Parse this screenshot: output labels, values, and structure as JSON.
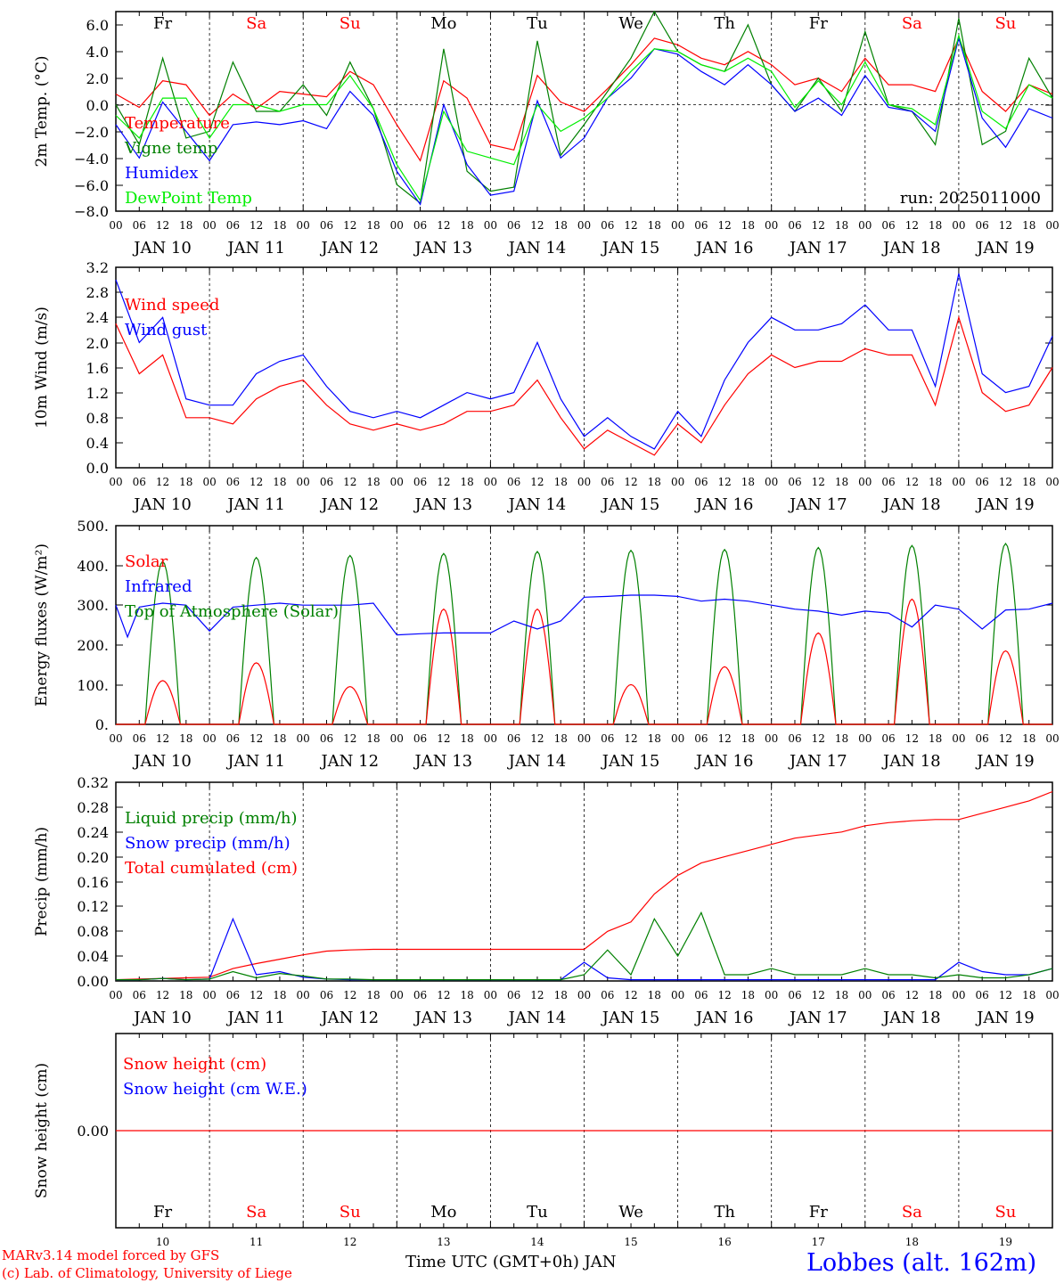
{
  "colors": {
    "red": "#ff0000",
    "blue": "#0000ff",
    "green": "#008000",
    "lightgreen": "#00ee00",
    "black": "#000000"
  },
  "days_header": {
    "labels": [
      "Fr",
      "Sa",
      "Su",
      "Mo",
      "Tu",
      "We",
      "Th",
      "Fr",
      "Sa",
      "Su"
    ],
    "label_colors": [
      "#000000",
      "#ff0000",
      "#ff0000",
      "#000000",
      "#000000",
      "#000000",
      "#000000",
      "#000000",
      "#ff0000",
      "#ff0000"
    ]
  },
  "hour_ticks": [
    "00",
    "06",
    "12",
    "18"
  ],
  "dates": [
    "JAN 10",
    "JAN 11",
    "JAN 12",
    "JAN 13",
    "JAN 14",
    "JAN 15",
    "JAN 16",
    "JAN 17",
    "JAN 18",
    "JAN 19"
  ],
  "bottom_day_numbers": [
    "10",
    "11",
    "12",
    "13",
    "14",
    "15",
    "16",
    "17",
    "18",
    "19"
  ],
  "footer": {
    "model_line1": "MARv3.14 model forced by GFS",
    "model_line2": "(c) Lab. of Climatology, University of Liege",
    "xlabel": "Time UTC (GMT+0h) JAN",
    "station": "Lobbes (alt. 162m)"
  },
  "chart_data": [
    {
      "type": "line",
      "ylabel": "2m Temp. (°C)",
      "annotation": "run: 2025011000",
      "ylim": [
        -8,
        7
      ],
      "yticks": [
        "6.0",
        "4.0",
        "2.0",
        "0.0",
        "−2.0",
        "−4.0",
        "−6.0",
        "−8.0"
      ],
      "zero_line": true,
      "x_hours": [
        0,
        6,
        12,
        18,
        24,
        30,
        36,
        42,
        48,
        54,
        60,
        66,
        72,
        78,
        84,
        90,
        96,
        102,
        108,
        114,
        120,
        126,
        132,
        138,
        144,
        150,
        156,
        162,
        168,
        174,
        180,
        186,
        192,
        198,
        204,
        210,
        216,
        222,
        228,
        234,
        240
      ],
      "series": [
        {
          "name": "Temperature",
          "color": "#ff0000",
          "values": [
            0.8,
            -0.2,
            1.8,
            1.5,
            -0.8,
            0.8,
            -0.3,
            1.0,
            0.8,
            0.6,
            2.5,
            1.5,
            -1.5,
            -4.2,
            1.8,
            0.5,
            -3.0,
            -3.4,
            2.2,
            0.2,
            -0.5,
            1.2,
            3.0,
            5.0,
            4.5,
            3.5,
            3.0,
            4.0,
            3.0,
            1.5,
            2.0,
            1.0,
            3.5,
            1.5,
            1.5,
            1.0,
            5.0,
            1.0,
            -0.5,
            1.5,
            0.8
          ]
        },
        {
          "name": "Vigne temp",
          "color": "#008000",
          "values": [
            0.0,
            -3.0,
            3.5,
            -2.5,
            -2.0,
            3.2,
            -0.5,
            -0.5,
            1.5,
            -0.8,
            3.2,
            -0.3,
            -6.0,
            -7.4,
            4.2,
            -5.0,
            -6.5,
            -6.2,
            4.8,
            -3.8,
            -1.5,
            1.0,
            3.5,
            7.0,
            4.0,
            3.0,
            2.5,
            6.0,
            1.5,
            -0.5,
            2.0,
            -0.5,
            5.5,
            0.0,
            -0.5,
            -3.0,
            6.5,
            -3.0,
            -2.0,
            3.5,
            0.5
          ]
        },
        {
          "name": "Humidex",
          "color": "#0000ff",
          "values": [
            -1.5,
            -4.0,
            0.2,
            -2.0,
            -4.2,
            -1.5,
            -1.3,
            -1.5,
            -1.2,
            -1.8,
            1.0,
            -0.8,
            -5.0,
            -7.5,
            0.0,
            -4.5,
            -6.8,
            -6.5,
            0.3,
            -4.0,
            -2.5,
            0.5,
            2.0,
            4.2,
            3.8,
            2.5,
            1.5,
            3.0,
            1.5,
            -0.5,
            0.5,
            -0.8,
            2.2,
            -0.2,
            -0.5,
            -2.0,
            5.0,
            -1.0,
            -3.2,
            -0.3,
            -1.0
          ]
        },
        {
          "name": "DewPoint Temp",
          "color": "#00ee00",
          "values": [
            -0.8,
            -2.5,
            0.5,
            0.5,
            -2.5,
            0.0,
            0.0,
            -0.5,
            0.0,
            0.0,
            2.2,
            -0.3,
            -4.5,
            -7.2,
            -0.5,
            -3.5,
            -4.0,
            -4.5,
            0.0,
            -2.0,
            -1.0,
            0.5,
            2.5,
            4.2,
            4.0,
            3.0,
            2.5,
            3.5,
            2.5,
            -0.2,
            1.8,
            0.0,
            3.2,
            0.0,
            -0.3,
            -1.5,
            5.2,
            -0.5,
            -1.8,
            1.5,
            0.5
          ]
        }
      ]
    },
    {
      "type": "line",
      "ylabel": "10m Wind (m/s)",
      "ylim": [
        0,
        3.2
      ],
      "yticks": [
        "3.2",
        "2.8",
        "2.4",
        "2.0",
        "1.6",
        "1.2",
        "0.8",
        "0.4",
        "0.0"
      ],
      "x_hours": [
        0,
        6,
        12,
        18,
        24,
        30,
        36,
        42,
        48,
        54,
        60,
        66,
        72,
        78,
        84,
        90,
        96,
        102,
        108,
        114,
        120,
        126,
        132,
        138,
        144,
        150,
        156,
        162,
        168,
        174,
        180,
        186,
        192,
        198,
        204,
        210,
        216,
        222,
        228,
        234,
        240
      ],
      "series": [
        {
          "name": "Wind speed",
          "color": "#ff0000",
          "values": [
            2.3,
            1.5,
            1.8,
            0.8,
            0.8,
            0.7,
            1.1,
            1.3,
            1.4,
            1.0,
            0.7,
            0.6,
            0.7,
            0.6,
            0.7,
            0.9,
            0.9,
            1.0,
            1.4,
            0.8,
            0.3,
            0.6,
            0.4,
            0.2,
            0.7,
            0.4,
            1.0,
            1.5,
            1.8,
            1.6,
            1.7,
            1.7,
            1.9,
            1.8,
            1.8,
            1.0,
            2.4,
            1.2,
            0.9,
            1.0,
            1.6
          ]
        },
        {
          "name": "Wind gust",
          "color": "#0000ff",
          "values": [
            3.0,
            2.0,
            2.4,
            1.1,
            1.0,
            1.0,
            1.5,
            1.7,
            1.8,
            1.3,
            0.9,
            0.8,
            0.9,
            0.8,
            1.0,
            1.2,
            1.1,
            1.2,
            2.0,
            1.1,
            0.5,
            0.8,
            0.5,
            0.3,
            0.9,
            0.5,
            1.4,
            2.0,
            2.4,
            2.2,
            2.2,
            2.3,
            2.6,
            2.2,
            2.2,
            1.3,
            3.1,
            1.5,
            1.2,
            1.3,
            2.1
          ]
        }
      ]
    },
    {
      "type": "line",
      "ylabel": "Energy fluxes (W/m²)",
      "ylim": [
        0,
        500
      ],
      "yticks": [
        "500.",
        "400.",
        "300.",
        "200.",
        "100.",
        "0."
      ],
      "series": [
        {
          "name": "Solar",
          "color": "#ff0000",
          "peaks": [
            110,
            155,
            95,
            290,
            290,
            100,
            145,
            230,
            315,
            185
          ]
        },
        {
          "name": "Infrared",
          "color": "#0000ff",
          "x_hours": [
            0,
            3,
            6,
            9,
            12,
            18,
            24,
            30,
            36,
            42,
            48,
            60,
            66,
            72,
            78,
            84,
            96,
            102,
            108,
            114,
            120,
            126,
            132,
            138,
            144,
            150,
            156,
            162,
            168,
            174,
            180,
            186,
            192,
            198,
            204,
            210,
            216,
            222,
            228,
            234,
            240
          ],
          "values": [
            300,
            220,
            295,
            300,
            305,
            300,
            235,
            295,
            300,
            305,
            300,
            300,
            305,
            225,
            228,
            230,
            230,
            260,
            240,
            260,
            320,
            322,
            325,
            325,
            322,
            310,
            315,
            310,
            300,
            290,
            285,
            275,
            285,
            280,
            245,
            300,
            290,
            240,
            288,
            290,
            305
          ]
        },
        {
          "name": "Top of Atmosphere (Solar)",
          "color": "#008000",
          "peaks": [
            410,
            420,
            425,
            430,
            435,
            438,
            440,
            445,
            450,
            455
          ]
        }
      ]
    },
    {
      "type": "line",
      "ylabel": "Precip (mm/h)",
      "ylim": [
        0,
        0.32
      ],
      "yticks": [
        "0.32",
        "0.28",
        "0.24",
        "0.20",
        "0.16",
        "0.12",
        "0.08",
        "0.04",
        "0.00"
      ],
      "x_hours": [
        0,
        6,
        12,
        18,
        24,
        30,
        36,
        42,
        48,
        54,
        60,
        66,
        72,
        78,
        84,
        90,
        96,
        102,
        108,
        114,
        120,
        126,
        132,
        138,
        144,
        150,
        156,
        162,
        168,
        174,
        180,
        186,
        192,
        198,
        204,
        210,
        216,
        222,
        228,
        234,
        240
      ],
      "series": [
        {
          "name": "Liquid precip (mm/h)",
          "color": "#008000",
          "values": [
            0.002,
            0.002,
            0.004,
            0.002,
            0.003,
            0.015,
            0.005,
            0.012,
            0.008,
            0.003,
            0.003,
            0.002,
            0.002,
            0.002,
            0.002,
            0.002,
            0.002,
            0.002,
            0.002,
            0.002,
            0.01,
            0.05,
            0.01,
            0.1,
            0.04,
            0.11,
            0.01,
            0.01,
            0.02,
            0.01,
            0.01,
            0.01,
            0.02,
            0.01,
            0.01,
            0.005,
            0.01,
            0.005,
            0.005,
            0.01,
            0.02
          ]
        },
        {
          "name": "Snow precip (mm/h)",
          "color": "#0000ff",
          "values": [
            0.002,
            0.002,
            0.004,
            0.002,
            0.003,
            0.1,
            0.01,
            0.015,
            0.006,
            0.003,
            0.002,
            0.002,
            0.002,
            0.002,
            0.002,
            0.002,
            0.002,
            0.002,
            0.002,
            0.002,
            0.03,
            0.005,
            0.002,
            0.002,
            0.002,
            0.002,
            0.002,
            0.002,
            0.002,
            0.002,
            0.002,
            0.002,
            0.002,
            0.002,
            0.002,
            0.002,
            0.03,
            0.015,
            0.01,
            0.01,
            0.02
          ]
        },
        {
          "name": "Total cumulated (cm)",
          "color": "#ff0000",
          "values": [
            0.002,
            0.003,
            0.004,
            0.005,
            0.006,
            0.02,
            0.028,
            0.035,
            0.042,
            0.048,
            0.05,
            0.051,
            0.051,
            0.051,
            0.051,
            0.051,
            0.051,
            0.051,
            0.051,
            0.051,
            0.051,
            0.08,
            0.095,
            0.14,
            0.17,
            0.19,
            0.2,
            0.21,
            0.22,
            0.23,
            0.235,
            0.24,
            0.25,
            0.255,
            0.258,
            0.26,
            0.26,
            0.27,
            0.28,
            0.29,
            0.305
          ]
        }
      ]
    },
    {
      "type": "line",
      "ylabel": "Snow height (cm)",
      "ytick": "0.00",
      "series": [
        {
          "name": "Snow height (cm)",
          "color": "#ff0000",
          "values": [
            0,
            0
          ]
        },
        {
          "name": "Snow height (cm W.E.)",
          "color": "#0000ff",
          "values": [
            0,
            0
          ]
        }
      ]
    }
  ]
}
